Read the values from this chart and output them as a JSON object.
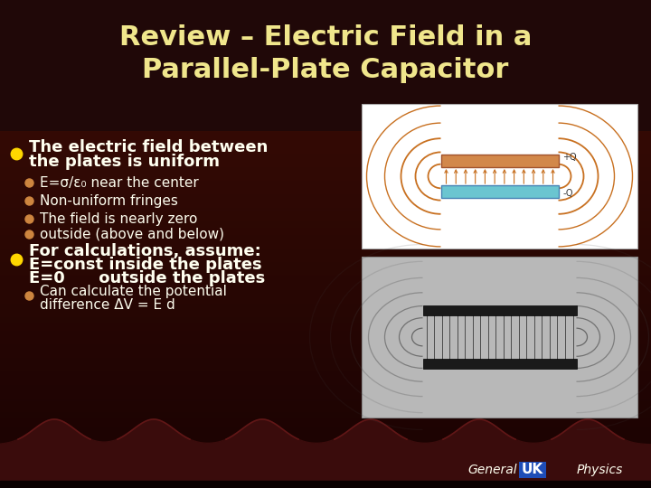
{
  "title_line1": "Review – Electric Field in a",
  "title_line2": "Parallel-Plate Capacitor",
  "title_color": "#F0E68C",
  "title_fontsize": 22,
  "bullet1_line1": "The electric field between",
  "bullet1_line2": "the plates is uniform",
  "sub_bullets": [
    "E=σ/ε₀ near the center",
    "Non-uniform fringes",
    "The field is nearly zero",
    "outside (above and below)"
  ],
  "bullet2_line1": "For calculations, assume:",
  "bullet2_line2": "E=const inside the plates",
  "bullet2_line3": "E=0      outside the plates",
  "sub_bullet2_line1": "Can calculate the potential",
  "sub_bullet2_line2": "difference ΔV = E d",
  "text_color": "#FFFFF0",
  "sub_text_color": "#FFFFF0",
  "bullet_color_main": "#FFD700",
  "bullet_color_sub": "#CD853F",
  "footer_general": "General",
  "footer_uk": "UK",
  "footer_physics": "Physics",
  "footer_uk_color": "#1E4DB7",
  "footer_text_color": "#FFFFF0"
}
